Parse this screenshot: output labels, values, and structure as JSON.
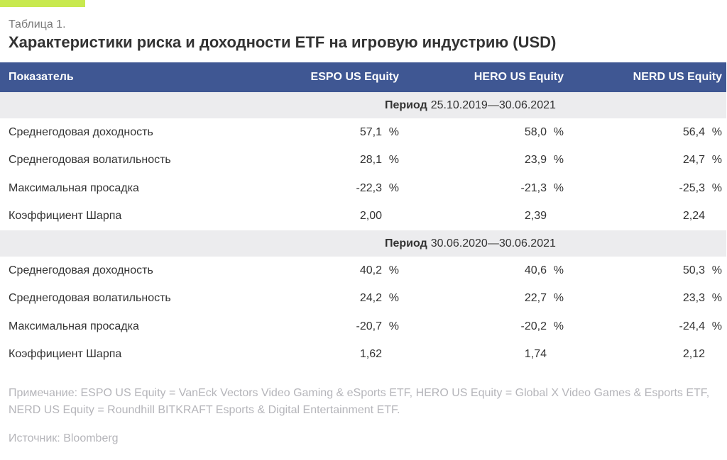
{
  "colors": {
    "accent": "#c8e94f",
    "header_bg": "#3f5793",
    "band_bg": "#ececee",
    "note_text": "#b5b5ba"
  },
  "caption": "Таблица 1.",
  "title": "Характеристики риска и доходности ETF на игровую индустрию (USD)",
  "table": {
    "headers": [
      "Показатель",
      "ESPO US Equity",
      "HERO US Equity",
      "NERD US Equity"
    ],
    "periods": [
      {
        "label": "Период",
        "range": "25.10.2019—30.06.2021",
        "rows": [
          {
            "name": "Среднегодовая доходность",
            "values": [
              "57,1",
              "58,0",
              "56,4"
            ],
            "unit": "%"
          },
          {
            "name": "Среднегодовая волатильность",
            "values": [
              "28,1",
              "23,9",
              "24,7"
            ],
            "unit": "%"
          },
          {
            "name": "Максимальная просадка",
            "values": [
              "-22,3",
              "-21,3",
              "-25,3"
            ],
            "unit": "%"
          },
          {
            "name": "Коэффициент Шарпа",
            "values": [
              "2,00",
              "2,39",
              "2,24"
            ],
            "unit": ""
          }
        ]
      },
      {
        "label": "Период",
        "range": "30.06.2020—30.06.2021",
        "rows": [
          {
            "name": "Среднегодовая доходность",
            "values": [
              "40,2",
              "40,6",
              "50,3"
            ],
            "unit": "%"
          },
          {
            "name": "Среднегодовая волатильность",
            "values": [
              "24,2",
              "22,7",
              "23,3"
            ],
            "unit": "%"
          },
          {
            "name": "Максимальная просадка",
            "values": [
              "-20,7",
              "-20,2",
              "-24,4"
            ],
            "unit": "%"
          },
          {
            "name": "Коэффициент Шарпа",
            "values": [
              "1,62",
              "1,74",
              "2,12"
            ],
            "unit": ""
          }
        ]
      }
    ]
  },
  "note": "Примечание: ESPO US Equity = VanEck Vectors Video Gaming & eSports ETF, HERO US Equity = Global X Video Games & Esports ETF, NERD US Equity = Roundhill BITKRAFT Esports & Digital Entertainment ETF.",
  "source": "Источник: Bloomberg"
}
